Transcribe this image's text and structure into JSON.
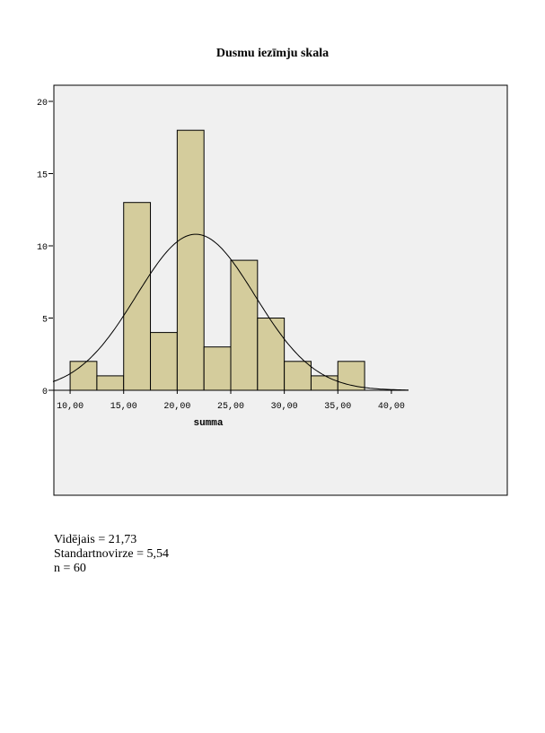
{
  "chart_data": {
    "type": "bar",
    "title": "Dusmu iezīmju skala",
    "xlabel": "summa",
    "ylabel": "",
    "bin_edges": [
      10,
      12.5,
      15,
      17.5,
      20,
      22.5,
      25,
      27.5,
      30,
      32.5,
      35,
      37.5
    ],
    "values": [
      2,
      1,
      13,
      4,
      18,
      3,
      9,
      5,
      2,
      1,
      2
    ],
    "xlim": [
      8.4,
      41.6
    ],
    "ylim": [
      0,
      20
    ],
    "x_ticks": [
      10,
      15,
      20,
      25,
      30,
      35,
      40
    ],
    "x_tick_labels": [
      "10,00",
      "15,00",
      "20,00",
      "25,00",
      "30,00",
      "35,00",
      "40,00"
    ],
    "y_ticks": [
      0,
      5,
      10,
      15,
      20
    ],
    "y_tick_labels": [
      "0",
      "5",
      "10",
      "15",
      "20"
    ],
    "normal_curve": {
      "mean": 21.73,
      "sd": 5.54,
      "n": 60,
      "bin_width": 2.5
    },
    "colors": {
      "bar_fill": "#d4cc9c",
      "plot_background": "#f0f0f0",
      "stroke": "#000000"
    }
  },
  "stats": {
    "mean_label": "Vidējais = 21,73",
    "sd_label": "Standartnovirze = 5,54",
    "n_label": "n = 60"
  }
}
